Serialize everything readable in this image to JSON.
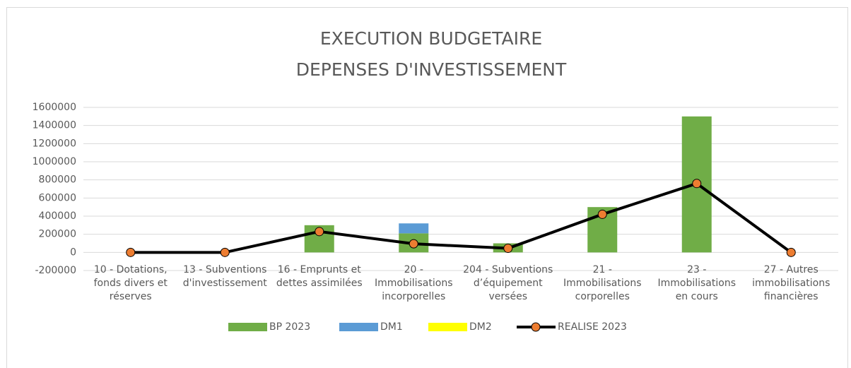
{
  "chart_data": {
    "type": "bar",
    "stacked": true,
    "title": [
      "EXECUTION BUDGETAIRE",
      "DEPENSES D'INVESTISSEMENT"
    ],
    "categories": [
      "10 - Dotations, fonds divers et réserves",
      "13 - Subventions d'investissement",
      "16 - Emprunts et dettes assimilées",
      "20 - Immobilisations incorporelles",
      "204 - Subventions d’équipement versées",
      "21 - Immobilisations corporelles",
      "23 - Immobilisations en cours",
      "27 - Autres immobilisations financières"
    ],
    "series": [
      {
        "name": "BP 2023",
        "type": "bar",
        "color": "#70ad47",
        "values": [
          0,
          0,
          300000,
          210000,
          100000,
          500000,
          1500000,
          0
        ]
      },
      {
        "name": "DM1",
        "type": "bar",
        "color": "#5b9bd5",
        "values": [
          0,
          0,
          0,
          110000,
          0,
          0,
          0,
          0
        ]
      },
      {
        "name": "DM2",
        "type": "bar",
        "color": "#ffff00",
        "values": [
          0,
          0,
          0,
          0,
          0,
          0,
          0,
          0
        ]
      },
      {
        "name": "REALISE 2023",
        "type": "line",
        "color": "#000000",
        "marker_color": "#ed7d31",
        "values": [
          0,
          0,
          230000,
          95000,
          45000,
          420000,
          760000,
          0
        ]
      }
    ],
    "ylim": [
      -200000,
      1600000
    ],
    "yticks": [
      -200000,
      0,
      200000,
      400000,
      600000,
      800000,
      1000000,
      1200000,
      1400000,
      1600000
    ],
    "grid": true,
    "legend": "bottom"
  }
}
